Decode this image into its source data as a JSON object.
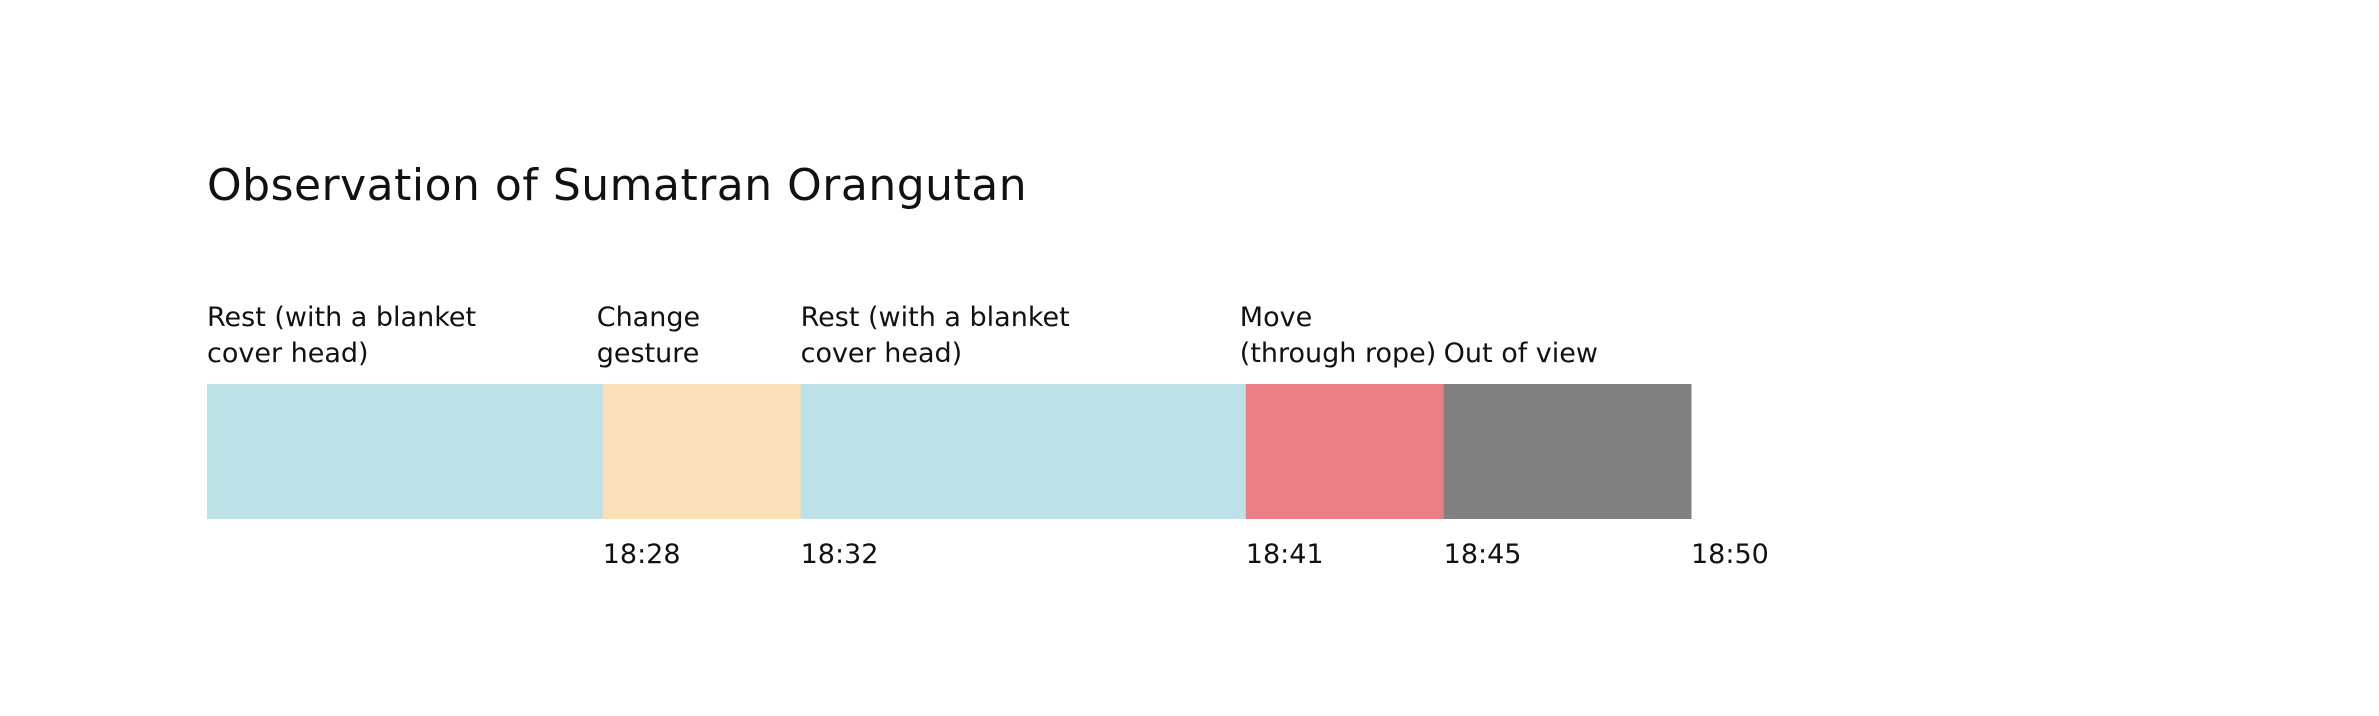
{
  "chart_data": {
    "type": "bar",
    "subtype": "timeline",
    "title": "Observation of Sumatran Orangutan",
    "segments": [
      {
        "label": [
          "Rest (with a blanket",
          "cover head)"
        ],
        "start_min": 0,
        "end_min": 4,
        "color": "#bde1e9"
      },
      {
        "label": [
          "Change",
          "gesture"
        ],
        "start_min": 4,
        "end_min": 6,
        "color": "#fbdfb6"
      },
      {
        "label": [
          "Rest (with a blanket",
          "cover head)"
        ],
        "start_min": 6,
        "end_min": 10.5,
        "color": "#bde1e9"
      },
      {
        "label": [
          "Move",
          "(through rope)"
        ],
        "start_min": 10.5,
        "end_min": 12.5,
        "color": "#eb7e84"
      },
      {
        "label": [
          "Out of view"
        ],
        "start_min": 12.5,
        "end_min": 15,
        "color": "#808080"
      }
    ],
    "ticks": [
      {
        "label": "18:28",
        "at_min": 4
      },
      {
        "label": "18:32",
        "at_min": 6
      },
      {
        "label": "18:41",
        "at_min": 10.5
      },
      {
        "label": "18:45",
        "at_min": 12.5
      },
      {
        "label": "18:50",
        "at_min": 15
      }
    ],
    "xlim": [
      0,
      15
    ],
    "grid": false,
    "legend": "none"
  }
}
